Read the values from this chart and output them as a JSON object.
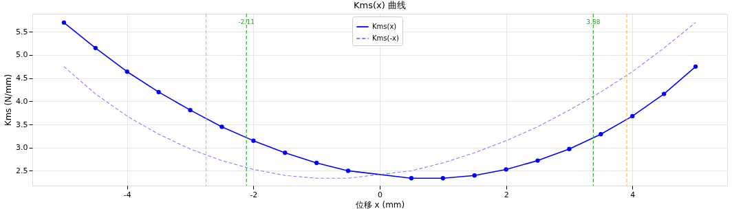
{
  "chart_data": {
    "type": "line",
    "title": "Kms(x) 曲线",
    "xlabel": "位移 x (mm)",
    "ylabel": "Kms (N/mm)",
    "x": [
      -5,
      -4.5,
      -4,
      -3.5,
      -3,
      -2.5,
      -2,
      -1.5,
      -1,
      -0.5,
      0.5,
      1,
      1.5,
      2,
      2.5,
      3,
      3.5,
      4,
      4.5,
      5
    ],
    "series": [
      {
        "name": "Kms(x)",
        "color": "#0000ff",
        "marker": "circle",
        "line_style": "solid",
        "values": [
          5.7,
          5.15,
          4.64,
          4.2,
          3.81,
          3.45,
          3.15,
          2.89,
          2.67,
          2.5,
          2.34,
          2.34,
          2.4,
          2.53,
          2.72,
          2.97,
          3.29,
          3.68,
          4.16,
          4.75
        ]
      },
      {
        "name": "Kms(-x)",
        "color": "#8080ff",
        "marker": "none",
        "line_style": "dashed",
        "values": [
          4.75,
          4.16,
          3.68,
          3.29,
          2.97,
          2.72,
          2.53,
          2.4,
          2.34,
          2.34,
          2.5,
          2.67,
          2.89,
          3.15,
          3.45,
          3.81,
          4.2,
          4.64,
          5.15,
          5.7
        ]
      }
    ],
    "ref_lines": [
      {
        "axis": "x",
        "value": -2.75,
        "color": "#ffb732",
        "line_style": "dashed"
      },
      {
        "axis": "x",
        "value": 3.91,
        "color": "#ffb732",
        "line_style": "dashed"
      },
      {
        "axis": "x",
        "value": -2.11,
        "label": "-2.11",
        "color": "#2ca02c",
        "line_style": "dashed"
      },
      {
        "axis": "x",
        "value": 3.38,
        "label": "3.38",
        "color": "#2ca02c",
        "line_style": "dashed"
      }
    ],
    "xlim": [
      -5.5,
      5.5
    ],
    "xticks": [
      -4,
      -2,
      0,
      2,
      4
    ],
    "ylim": [
      2.18,
      5.89
    ],
    "yticks": [
      2.5,
      {
        "value": 3,
        "label": "3.0"
      },
      3.5,
      {
        "value": 4,
        "label": "4.0"
      },
      4.5,
      {
        "value": 5,
        "label": "5.0"
      },
      5.5
    ],
    "grid": true,
    "legend": "top"
  }
}
